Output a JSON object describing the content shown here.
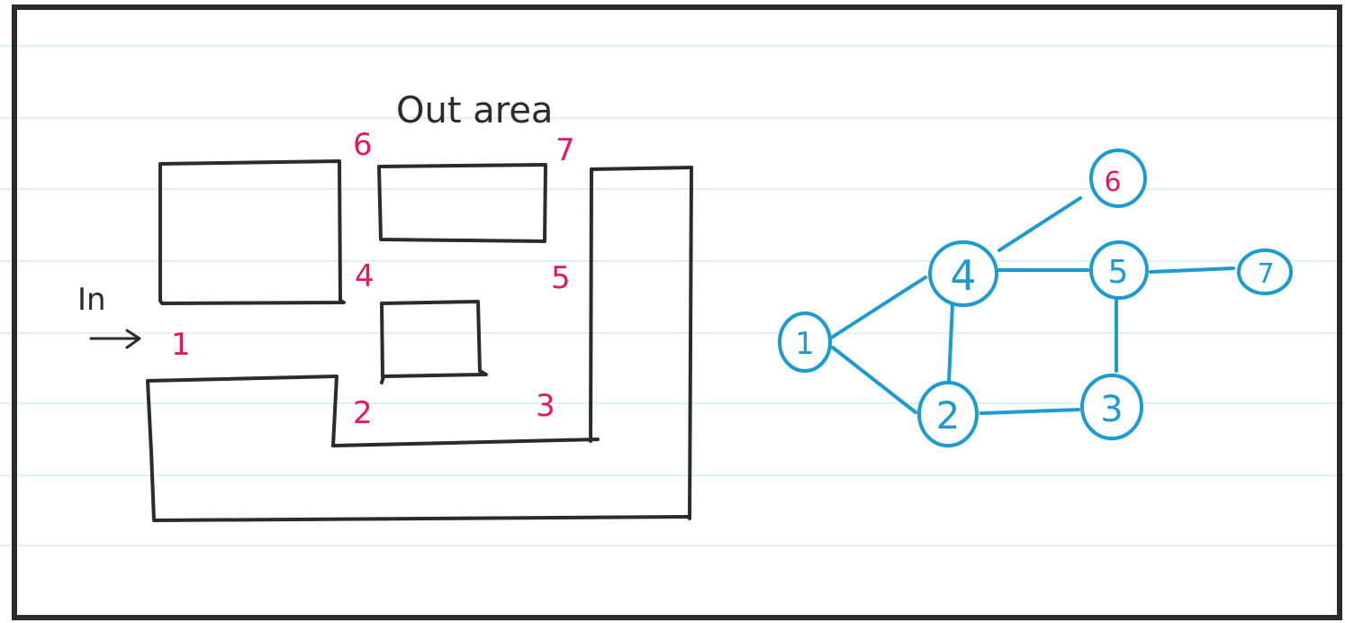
{
  "colors": {
    "ink": "#2b2b2b",
    "label": "#e8175d",
    "graph": "#1a9bd1",
    "ruling": "#c9e6f3",
    "paper": "#ffffff"
  },
  "maze": {
    "title": "Out area",
    "entry_label": "In",
    "entry_arrow": "→",
    "waypoints": {
      "p1": "1",
      "p2": "2",
      "p3": "3",
      "p4": "4",
      "p5": "5",
      "p6": "6",
      "p7": "7"
    }
  },
  "graph": {
    "nodes": {
      "n1": "1",
      "n2": "2",
      "n3": "3",
      "n4": "4",
      "n5": "5",
      "n6": "6",
      "n7": "7"
    },
    "edges": [
      [
        "1",
        "4"
      ],
      [
        "1",
        "2"
      ],
      [
        "4",
        "6"
      ],
      [
        "4",
        "5"
      ],
      [
        "4",
        "2"
      ],
      [
        "5",
        "7"
      ],
      [
        "5",
        "3"
      ],
      [
        "2",
        "3"
      ]
    ]
  }
}
